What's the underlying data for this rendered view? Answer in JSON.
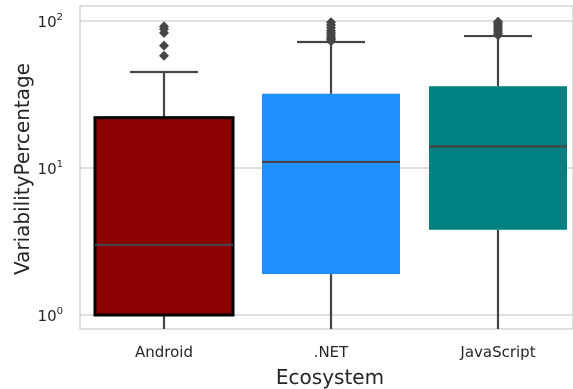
{
  "chart_data": {
    "type": "box",
    "xlabel": "Ecosystem",
    "ylabel": "VariabilityPercentage",
    "yscale": "log",
    "ylim": [
      0.8,
      130
    ],
    "yticks": [
      {
        "value": 1,
        "base": "10",
        "exp": "0"
      },
      {
        "value": 10,
        "base": "10",
        "exp": "1"
      },
      {
        "value": 100,
        "base": "10",
        "exp": "2"
      }
    ],
    "grid": true,
    "categories": [
      "Android",
      ".NET",
      "JavaScript"
    ],
    "boxes": [
      {
        "category": "Android",
        "color": "#8B0000",
        "edge_color": "#000000",
        "q1": 1.0,
        "median": 3.0,
        "q3": 22,
        "whisker_low": 0.8,
        "whisker_high": 45,
        "outliers": [
          58,
          68,
          83,
          88,
          92
        ]
      },
      {
        "category": ".NET",
        "color": "#1E90FF",
        "edge_color": "#1E90FF",
        "q1": 1.9,
        "median": 11,
        "q3": 32,
        "whisker_low": 0.8,
        "whisker_high": 72,
        "outliers": [
          73,
          75,
          77,
          80,
          83,
          86,
          90,
          94,
          98
        ]
      },
      {
        "category": "JavaScript",
        "color": "#008080",
        "edge_color": "#008080",
        "q1": 3.8,
        "median": 14,
        "q3": 36,
        "whisker_low": 0.8,
        "whisker_high": 79,
        "outliers": [
          80,
          82,
          85,
          88,
          91,
          94,
          97,
          99
        ]
      }
    ]
  }
}
